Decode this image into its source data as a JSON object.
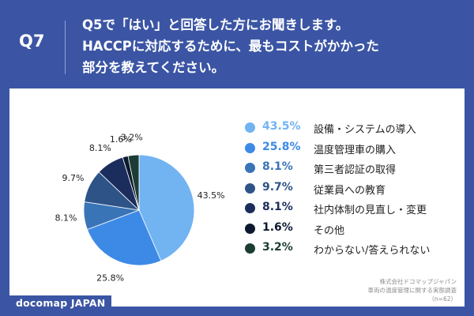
{
  "header": {
    "question_number": "Q7",
    "question_lines": [
      "Q5で「はい」と回答した方にお聞きします。",
      "HACCPに対応するために、最もコストがかかった",
      "部分を教えてください。"
    ]
  },
  "chart_data": {
    "type": "pie",
    "title": "",
    "slices": [
      {
        "label": "設備・システムの導入",
        "value": 43.5,
        "display": "43.5%",
        "color": "#72b3f2"
      },
      {
        "label": "温度管理車の購入",
        "value": 25.8,
        "display": "25.8%",
        "color": "#3d8ae6"
      },
      {
        "label": "第三者認証の取得",
        "value": 8.1,
        "display": "8.1%",
        "color": "#3974b7"
      },
      {
        "label": "従業員への教育",
        "value": 9.7,
        "display": "9.7%",
        "color": "#2e5487"
      },
      {
        "label": "社内体制の見直し・変更",
        "value": 8.1,
        "display": "8.1%",
        "color": "#1b2d5c"
      },
      {
        "label": "その他",
        "value": 1.6,
        "display": "1.6%",
        "color": "#0d1a2e"
      },
      {
        "label": "わからない/答えられない",
        "value": 3.2,
        "display": "3.2%",
        "color": "#1c3d34"
      }
    ],
    "legend_placement": "right"
  },
  "source": {
    "line1": "株式会社ドコマップジャパン",
    "line2": "車両の温度管理に関する実態調査",
    "line3": "（n=62）"
  },
  "logo": {
    "text": "docomap JAPAN"
  }
}
